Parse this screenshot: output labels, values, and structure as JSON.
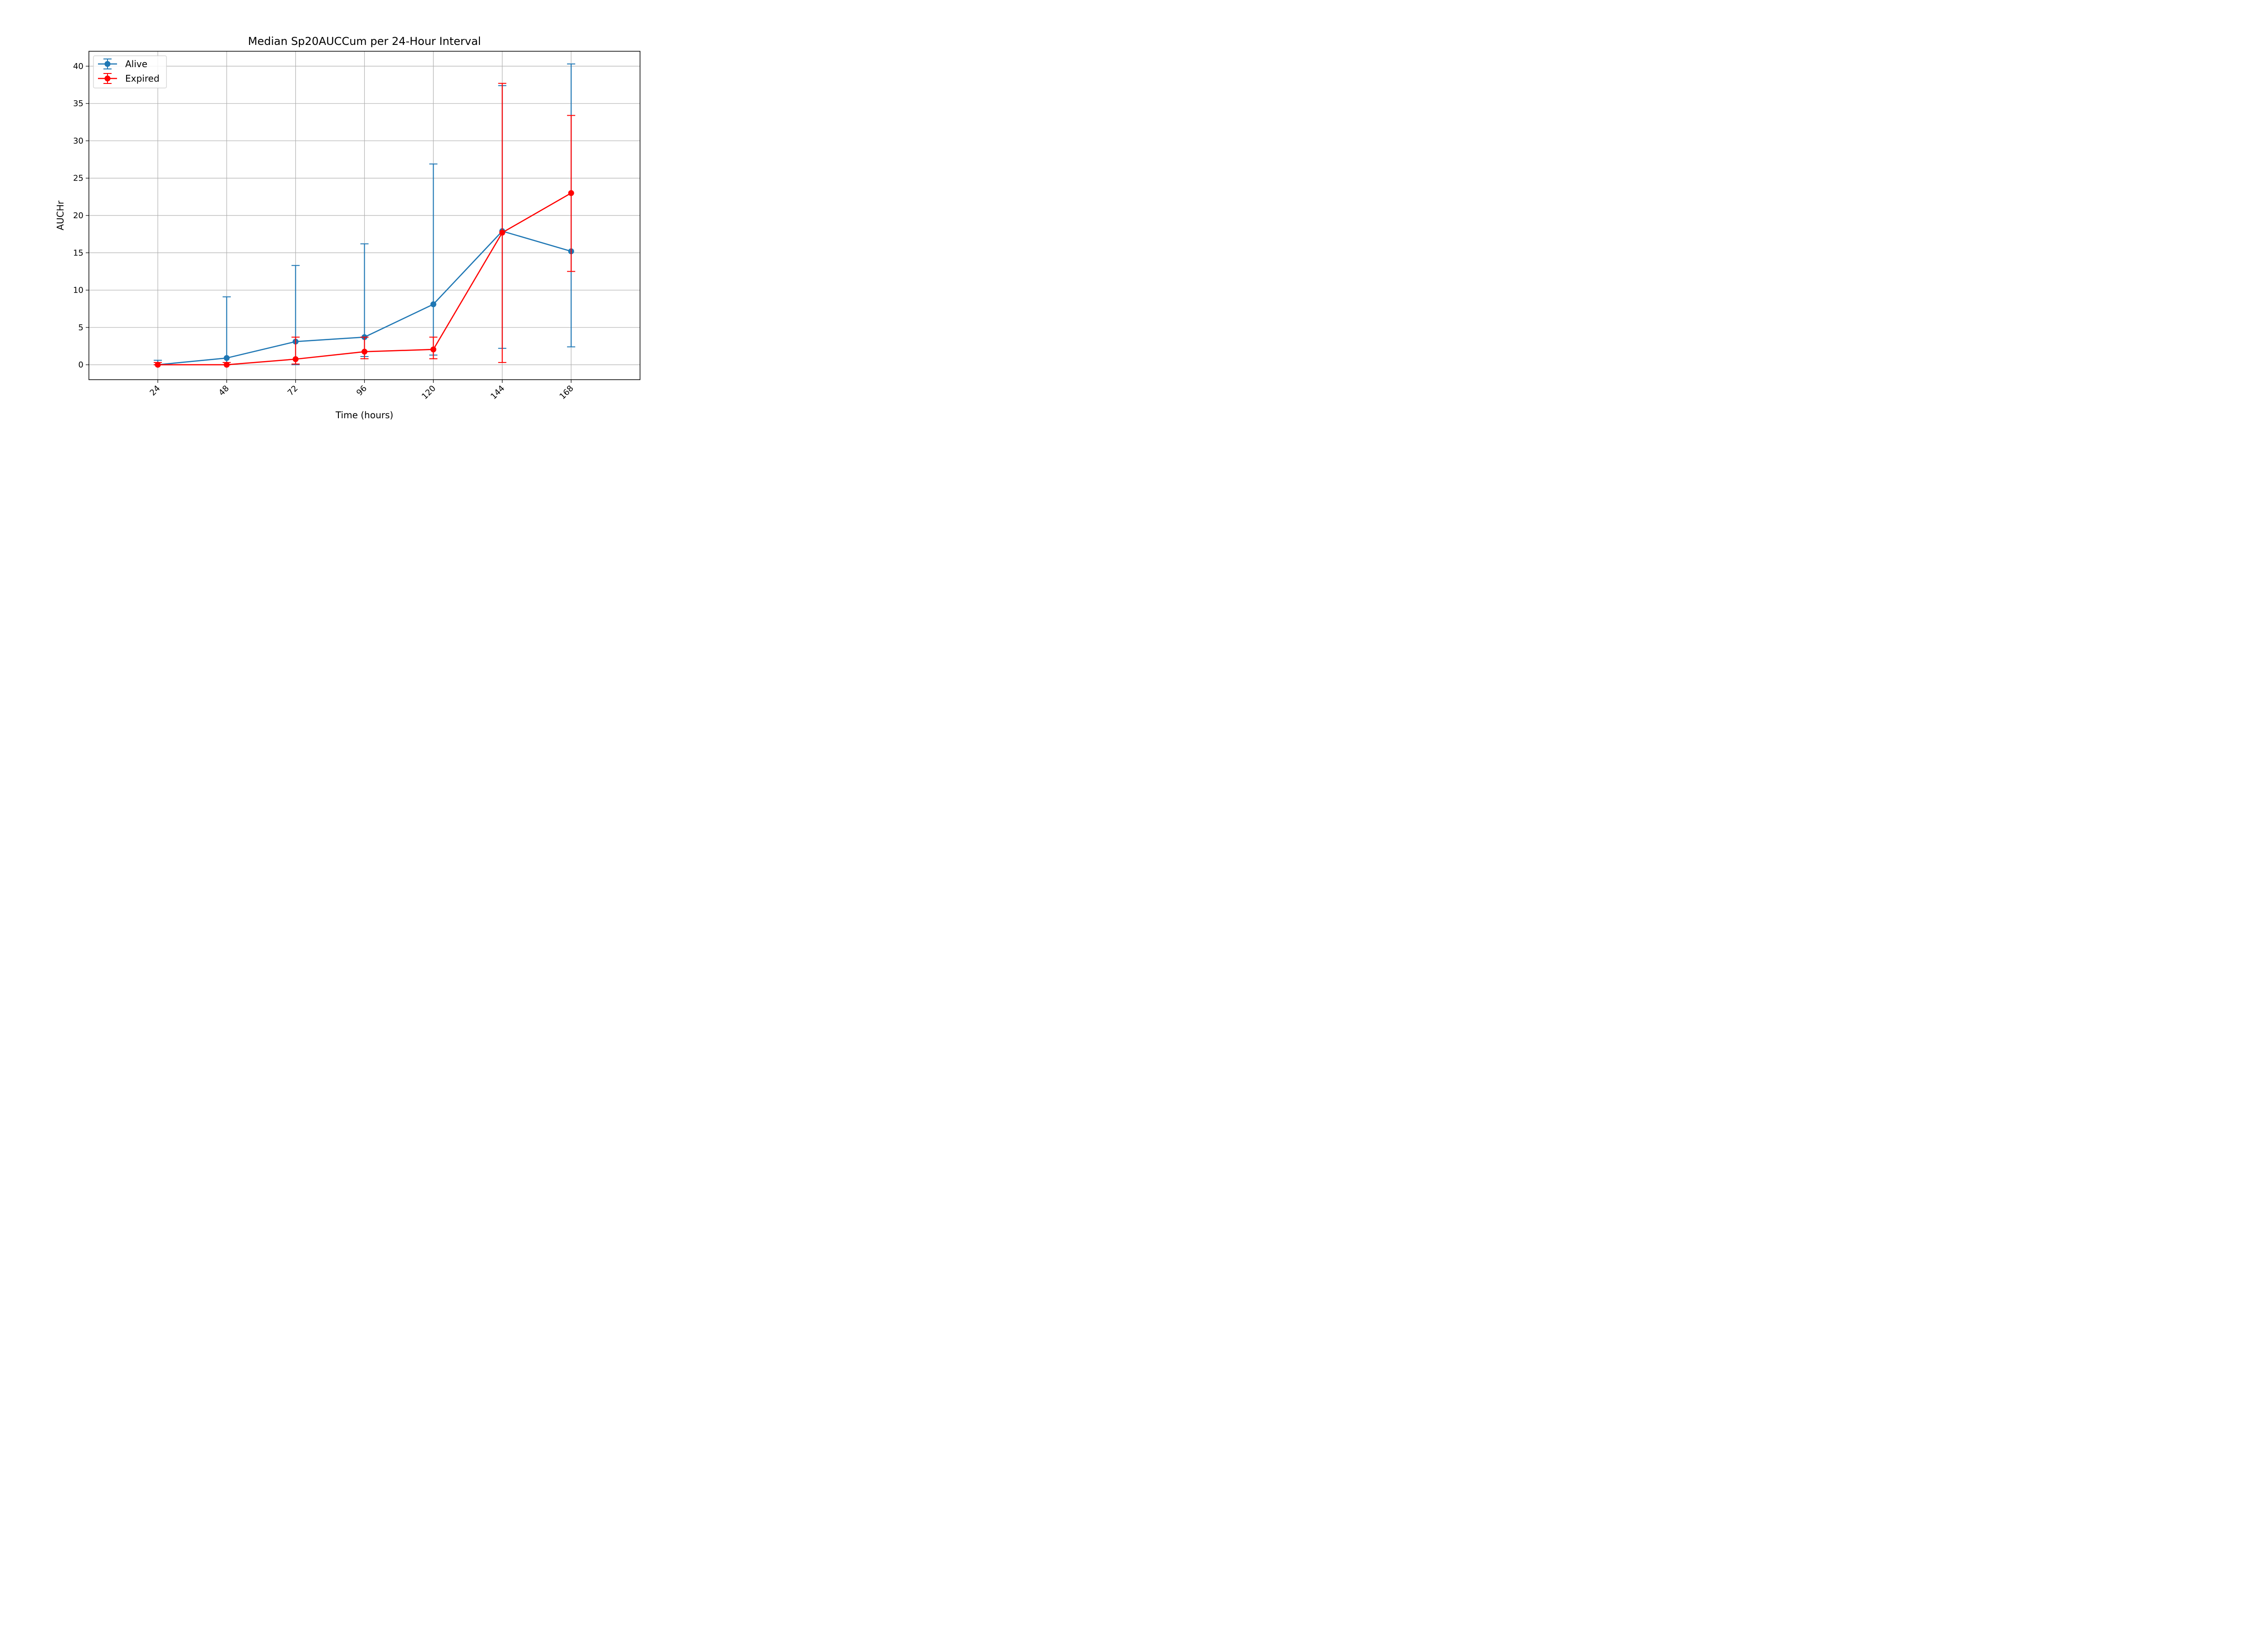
{
  "chart_data": {
    "type": "line",
    "title": "Median Sp20AUCCum per 24-Hour Interval",
    "xlabel": "Time (hours)",
    "ylabel": "AUCHr",
    "x": [
      24,
      48,
      72,
      96,
      120,
      144,
      168
    ],
    "xticks": [
      "24",
      "48",
      "72",
      "96",
      "120",
      "144",
      "168"
    ],
    "xlim": [
      0,
      192
    ],
    "yticks": [
      "0",
      "5",
      "10",
      "15",
      "20",
      "25",
      "30",
      "35",
      "40"
    ],
    "ylim": [
      -2,
      42
    ],
    "grid": true,
    "legend_position": "top-left",
    "series": [
      {
        "name": "Alive",
        "color": "#1f77b4",
        "values": [
          0.0,
          0.9,
          3.1,
          3.7,
          8.1,
          17.9,
          15.2
        ],
        "err_low": [
          0.0,
          0.0,
          0.0,
          1.1,
          1.3,
          2.2,
          2.4
        ],
        "err_high": [
          0.6,
          9.1,
          13.3,
          16.2,
          26.9,
          37.4,
          40.3
        ]
      },
      {
        "name": "Expired",
        "color": "#ff0000",
        "values": [
          0.0,
          0.0,
          0.75,
          1.75,
          2.05,
          17.7,
          23.0
        ],
        "err_low": [
          0.0,
          0.0,
          0.1,
          0.8,
          0.8,
          0.3,
          12.5
        ],
        "err_high": [
          0.3,
          0.3,
          3.7,
          3.7,
          3.7,
          37.7,
          33.4
        ]
      }
    ]
  }
}
